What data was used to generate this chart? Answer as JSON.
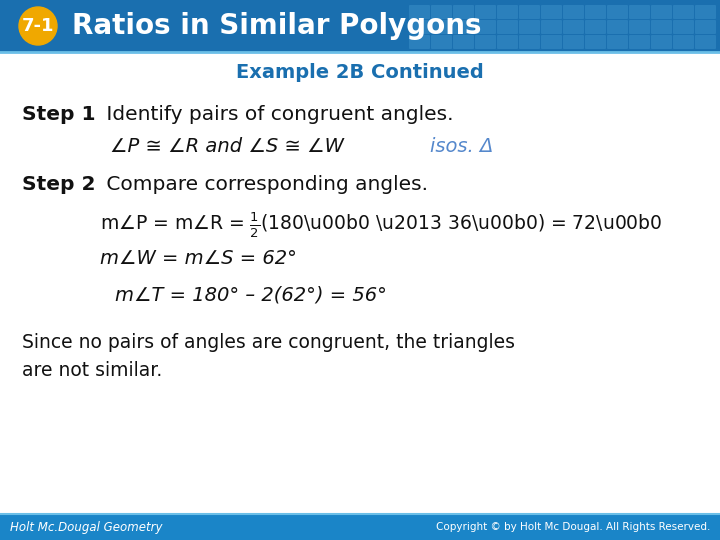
{
  "header_bg_color": "#1a6faf",
  "header_text": "Ratios in Similar Polygons",
  "header_badge_bg": "#f0a800",
  "header_badge_text": "7-1",
  "header_tile_color": "#3a8fc8",
  "subtitle": "Example 2B Continued",
  "subtitle_color": "#1a6faf",
  "body_bg": "#ffffff",
  "footer_left": "Holt Mc.Dougal Geometry",
  "footer_right": "Copyright © by Holt Mc Dougal. All Rights Reserved.",
  "footer_bg": "#1a85c8",
  "step_color": "#1a1a1a",
  "isos_color": "#5588cc",
  "figsize": [
    7.2,
    5.4
  ],
  "dpi": 100
}
